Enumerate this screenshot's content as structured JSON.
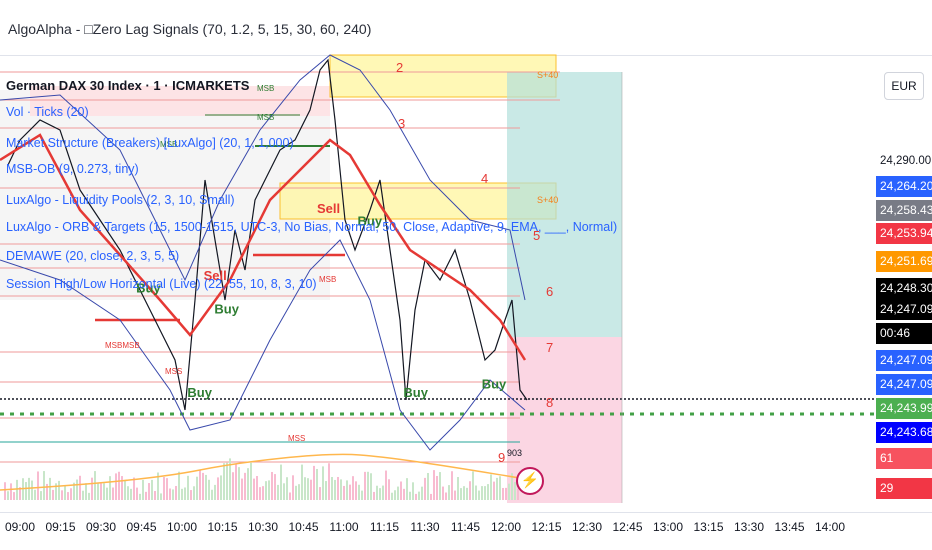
{
  "header": {
    "title": "AlgoAlpha - □Zero Lag Signals (70, 1.2, 5, 15, 30, 60, 240)"
  },
  "legend": {
    "symbol": "German DAX 30 Index · 1 · ICMARKETS",
    "indicators": [
      "Vol · Ticks (20)",
      "Market Structure (Breakers) [LuxAlgo] (20, 1, 1,000)",
      "MSB-OB (9, 0.273, tiny)",
      "LuxAlgo - Liquidity Pools (2, 3, 10, Small)",
      "LuxAlgo - ORB & Targets (15, 1500-1515, UTC-3, No Bias, Normal, 50, Close, Adaptive, 9, EMA, ___, Normal)",
      "DEMAWE (20, close, 2, 3, 5, 5)",
      "Session High/Low Horizontal (Live) (22, 55, 10, 8, 3, 10)"
    ]
  },
  "currency_button": "EUR",
  "chart_data": {
    "type": "line",
    "series": [],
    "x_ticks": [
      "09:00",
      "09:15",
      "09:30",
      "09:45",
      "10:00",
      "10:15",
      "10:30",
      "10:45",
      "11:00",
      "11:15",
      "11:30",
      "11:45",
      "12:00",
      "12:15",
      "12:30",
      "12:45",
      "13:00",
      "13:15",
      "13:30",
      "13:45",
      "14:00"
    ],
    "y_ticks": [
      "24,290.00"
    ],
    "last_price": 24247.09,
    "price_labels": [
      {
        "text": "24,264.20",
        "color": "#2962ff"
      },
      {
        "text": "24,258.43",
        "color": "#787b86"
      },
      {
        "text": "24,253.94",
        "color": "#f23645"
      },
      {
        "text": "24,251.69",
        "color": "#ff9800"
      },
      {
        "text": "24,248.30",
        "color": "#000000"
      },
      {
        "text": "24,247.09",
        "color": "#000000"
      },
      {
        "text": "00:46",
        "color": "#000000"
      },
      {
        "text": "24,247.09",
        "color": "#2962ff"
      },
      {
        "text": "24,247.09",
        "color": "#2962ff"
      },
      {
        "text": "24,243.99",
        "color": "#4caf50"
      },
      {
        "text": "24,243.68",
        "color": "#0000ff"
      },
      {
        "text": "61",
        "color": "#f7525f"
      },
      {
        "text": "29",
        "color": "#f23645"
      }
    ],
    "signals": [
      {
        "label": "Sell",
        "time": "10:50",
        "price": 24278
      },
      {
        "label": "Buy",
        "time": "11:05",
        "price": 24275
      },
      {
        "label": "Sell",
        "time": "10:08",
        "price": 24262
      },
      {
        "label": "Buy",
        "time": "10:12",
        "price": 24254
      },
      {
        "label": "Buy",
        "time": "09:43",
        "price": 24259
      },
      {
        "label": "Buy",
        "time": "10:02",
        "price": 24234
      },
      {
        "label": "Buy",
        "time": "11:22",
        "price": 24234
      },
      {
        "label": "Buy",
        "time": "11:51",
        "price": 24236
      }
    ],
    "target_numbers": [
      "2",
      "3",
      "4",
      "5",
      "6",
      "7",
      "8",
      "9"
    ],
    "structure_labels": [
      "MSB",
      "MSB",
      "MSB",
      "MSBMSB",
      "MSS",
      "MSB",
      "MSS"
    ],
    "zone_labels": [
      "S+40",
      "S+40"
    ],
    "volume_label": "903"
  }
}
